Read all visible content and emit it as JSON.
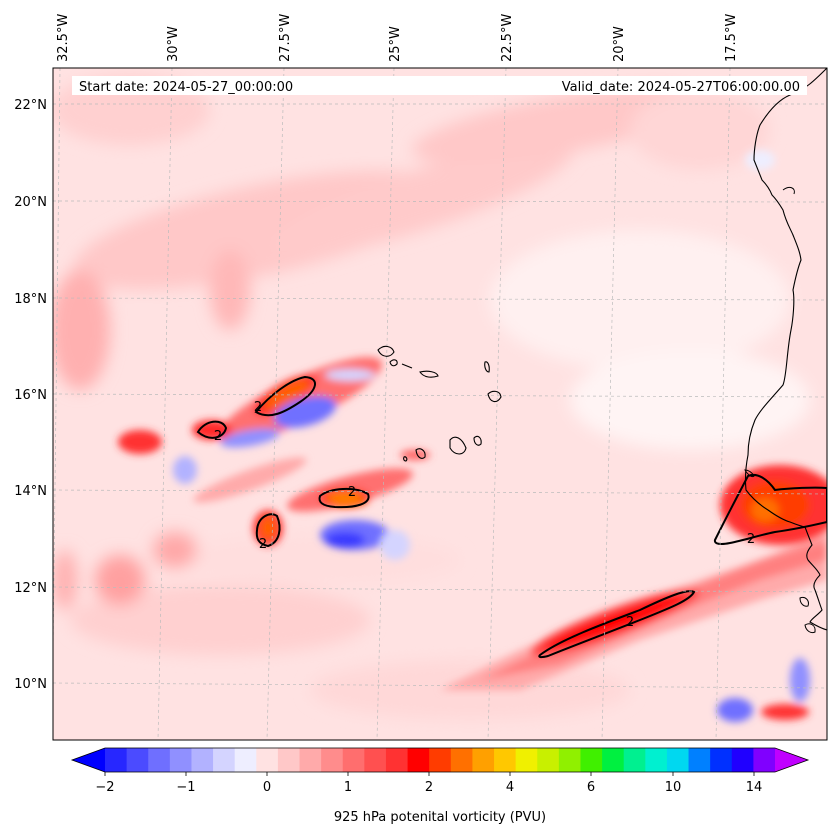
{
  "map": {
    "start_label": "Start date: 2024-05-27_00:00:00",
    "valid_label": "Valid_date: 2024-05-27T06:00:00.00",
    "lon_labels": [
      "32.5°W",
      "30°W",
      "27.5°W",
      "25°W",
      "22.5°W",
      "20°W",
      "17.5°W"
    ],
    "lat_labels": [
      "22°N",
      "20°N",
      "18°N",
      "16°N",
      "14°N",
      "12°N",
      "10°N"
    ],
    "contour_labels": [
      "2",
      "2",
      "2",
      "2",
      "2",
      "2"
    ],
    "colors": {
      "coast": "#000000",
      "contour": "#000000",
      "grid": "#bbbbbb"
    }
  },
  "colorbar": {
    "title": "925 hPa potenital vorticity (PVU)",
    "tick_labels": [
      "−2",
      "−1",
      "0",
      "1",
      "2",
      "4",
      "6",
      "10",
      "14"
    ],
    "colors": [
      "#0000ff",
      "#2727ff",
      "#4b4bff",
      "#6f6fff",
      "#9090ff",
      "#b2b2ff",
      "#d4d4ff",
      "#eeeeff",
      "#ffe2e2",
      "#ffc8c8",
      "#ffaaaa",
      "#ff8c8c",
      "#ff6e6e",
      "#ff5050",
      "#ff3232",
      "#ff0000",
      "#ff3c00",
      "#ff7000",
      "#ffa000",
      "#ffc800",
      "#f0f000",
      "#c8f000",
      "#90f000",
      "#40f000",
      "#00f040",
      "#00f090",
      "#00f0d0",
      "#00d8f0",
      "#0080ff",
      "#0030ff",
      "#2000ff",
      "#8000ff",
      "#c000ff"
    ]
  }
}
